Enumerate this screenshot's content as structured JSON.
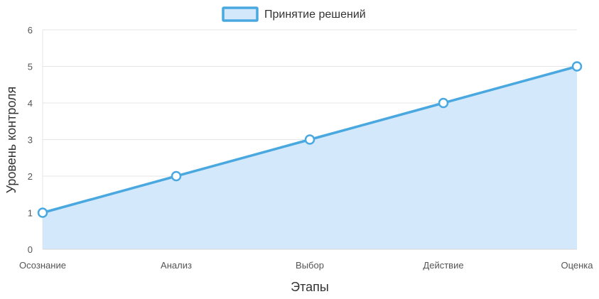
{
  "chart_data": {
    "type": "area",
    "categories": [
      "Осознание",
      "Анализ",
      "Выбор",
      "Действие",
      "Оценка"
    ],
    "series": [
      {
        "name": "Принятие решений",
        "values": [
          1,
          2,
          3,
          4,
          5
        ]
      }
    ],
    "xlabel": "Этапы",
    "ylabel": "Уровень контроля",
    "ylim": [
      0,
      6
    ],
    "yticks": [
      "0",
      "1",
      "2",
      "3",
      "4",
      "5",
      "6"
    ],
    "grid": true,
    "legend_position": "top-center",
    "colors": {
      "line": "#4aa8e0",
      "fill": "#d3e8fa",
      "point_fill": "#ffffff",
      "grid": "#e6e6e6"
    }
  }
}
